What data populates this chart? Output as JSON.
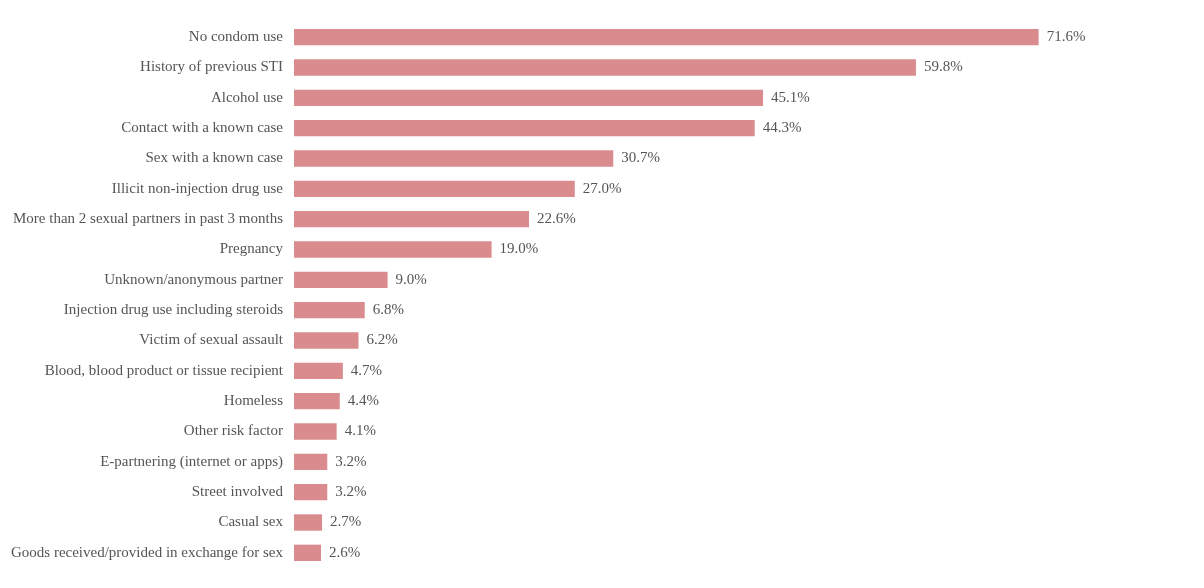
{
  "chart_data": {
    "type": "bar",
    "orientation": "horizontal",
    "categories": [
      "No condom use",
      "History of previous STI",
      "Alcohol use",
      "Contact with a known case",
      "Sex with a known case",
      "Illicit non-injection drug use",
      "More than 2 sexual partners in past 3 months",
      "Pregnancy",
      "Unknown/anonymous partner",
      "Injection drug use including steroids",
      "Victim of sexual assault",
      "Blood, blood product or tissue recipient",
      "Homeless",
      "Other risk factor",
      "E-partnering (internet or apps)",
      "Street involved",
      "Casual sex",
      "Goods received/provided in exchange for sex"
    ],
    "values": [
      71.6,
      59.8,
      45.1,
      44.3,
      30.7,
      27.0,
      22.6,
      19.0,
      9.0,
      6.8,
      6.2,
      4.7,
      4.4,
      4.1,
      3.2,
      3.2,
      2.7,
      2.6
    ],
    "value_labels": [
      "71.6%",
      "59.8%",
      "45.1%",
      "44.3%",
      "30.7%",
      "27.0%",
      "22.6%",
      "19.0%",
      "9.0%",
      "6.8%",
      "6.2%",
      "4.7%",
      "4.4%",
      "4.1%",
      "3.2%",
      "3.2%",
      "2.7%",
      "2.6%"
    ],
    "color": "#d98b8e",
    "tick_labels": "y"
  }
}
